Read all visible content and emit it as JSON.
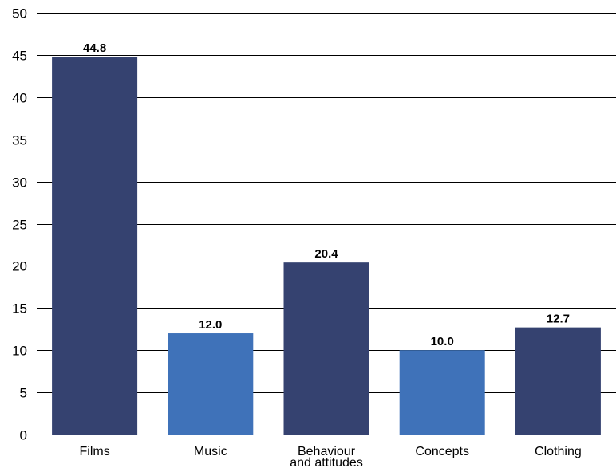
{
  "chart_data": {
    "type": "bar",
    "title": "",
    "xlabel": "",
    "ylabel": "",
    "ylim": [
      0,
      50
    ],
    "yticks": [
      "0",
      "5",
      "10",
      "15",
      "20",
      "25",
      "30",
      "35",
      "40",
      "45",
      "50"
    ],
    "grid": true,
    "categories": [
      [
        "Films"
      ],
      [
        "Music"
      ],
      [
        "Behaviour",
        "and attitudes"
      ],
      [
        "Concepts"
      ],
      [
        "Clothing"
      ]
    ],
    "values": [
      44.8,
      12.0,
      20.4,
      10.0,
      12.7
    ],
    "value_labels": [
      "44.8",
      "12.0",
      "20.4",
      "10.0",
      "12.7"
    ],
    "colors": [
      "#354270",
      "#3f72b9",
      "#354270",
      "#3f72b9",
      "#354270"
    ]
  }
}
